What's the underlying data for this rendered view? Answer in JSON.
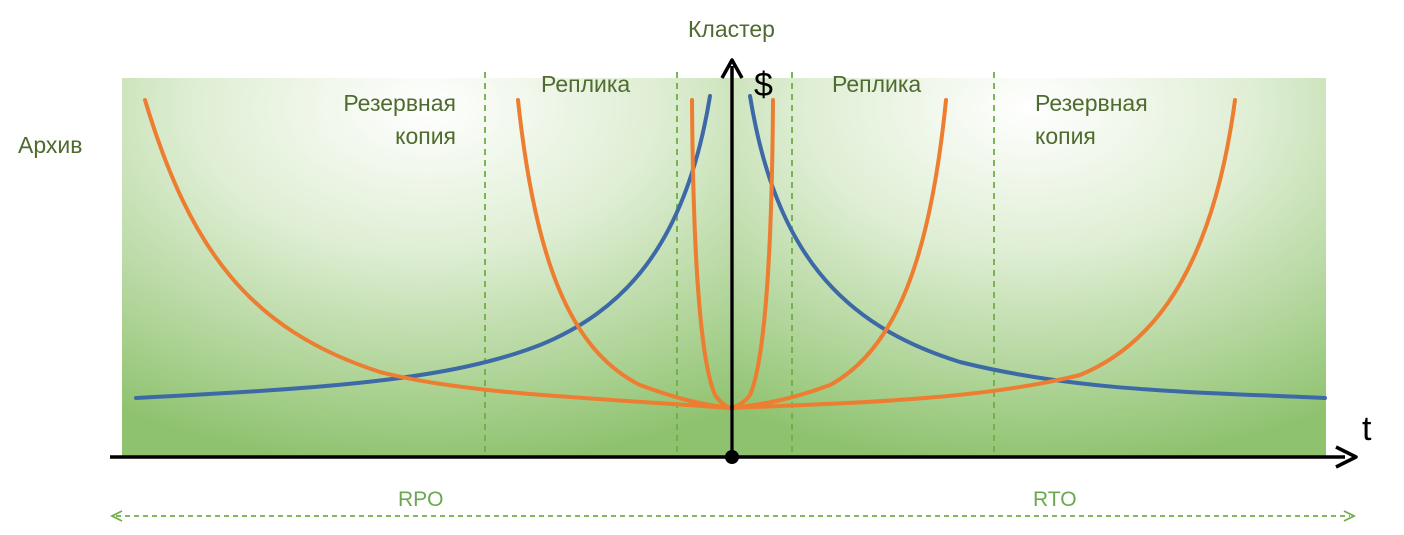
{
  "labels": {
    "archive": "Архив",
    "cluster": "Кластер",
    "backup_left_line1": "Резервная",
    "backup_left_line2": "копия",
    "replica_left": "Реплика",
    "replica_right": "Реплика",
    "backup_right_line1": "Резервная",
    "backup_right_line2": "копия",
    "y_axis_symbol": "$",
    "x_axis_symbol": "t",
    "rpo": "RPO",
    "rto": "RTO"
  },
  "colors": {
    "background_light": "#ffffff",
    "background_green": "#92c57a",
    "cost_curve": "#ed7d31",
    "loss_curve": "#3d6aa6",
    "dashed_divider": "#70ad47",
    "axis": "#000000",
    "label_text": "#4f6b2f",
    "rpo_rto_text": "#6aa84f"
  }
}
